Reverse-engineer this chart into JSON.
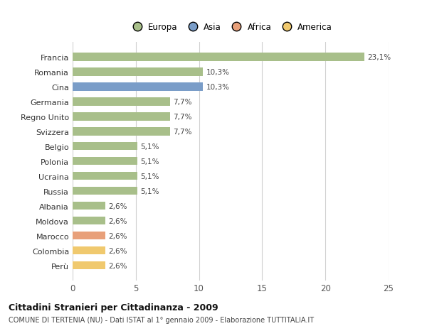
{
  "categories": [
    "Francia",
    "Romania",
    "Cina",
    "Germania",
    "Regno Unito",
    "Svizzera",
    "Belgio",
    "Polonia",
    "Ucraina",
    "Russia",
    "Albania",
    "Moldova",
    "Marocco",
    "Colombia",
    "Perù"
  ],
  "values": [
    23.1,
    10.3,
    10.3,
    7.7,
    7.7,
    7.7,
    5.1,
    5.1,
    5.1,
    5.1,
    2.6,
    2.6,
    2.6,
    2.6,
    2.6
  ],
  "colors": [
    "#a8bf8a",
    "#a8bf8a",
    "#7a9dc8",
    "#a8bf8a",
    "#a8bf8a",
    "#a8bf8a",
    "#a8bf8a",
    "#a8bf8a",
    "#a8bf8a",
    "#a8bf8a",
    "#a8bf8a",
    "#a8bf8a",
    "#e8a07a",
    "#f0c96e",
    "#f0c96e"
  ],
  "bar_labels": [
    "23,1%",
    "10,3%",
    "10,3%",
    "7,7%",
    "7,7%",
    "7,7%",
    "5,1%",
    "5,1%",
    "5,1%",
    "5,1%",
    "2,6%",
    "2,6%",
    "2,6%",
    "2,6%",
    "2,6%"
  ],
  "legend_labels": [
    "Europa",
    "Asia",
    "Africa",
    "America"
  ],
  "legend_colors": [
    "#a8bf8a",
    "#7a9dc8",
    "#e8a07a",
    "#f0c96e"
  ],
  "title": "Cittadini Stranieri per Cittadinanza - 2009",
  "subtitle": "COMUNE DI TERTENIA (NU) - Dati ISTAT al 1° gennaio 2009 - Elaborazione TUTTITALIA.IT",
  "xlim": [
    0,
    25
  ],
  "xticks": [
    0,
    5,
    10,
    15,
    20,
    25
  ],
  "background_color": "#ffffff",
  "grid_color": "#d0d0d0",
  "bar_height": 0.55
}
